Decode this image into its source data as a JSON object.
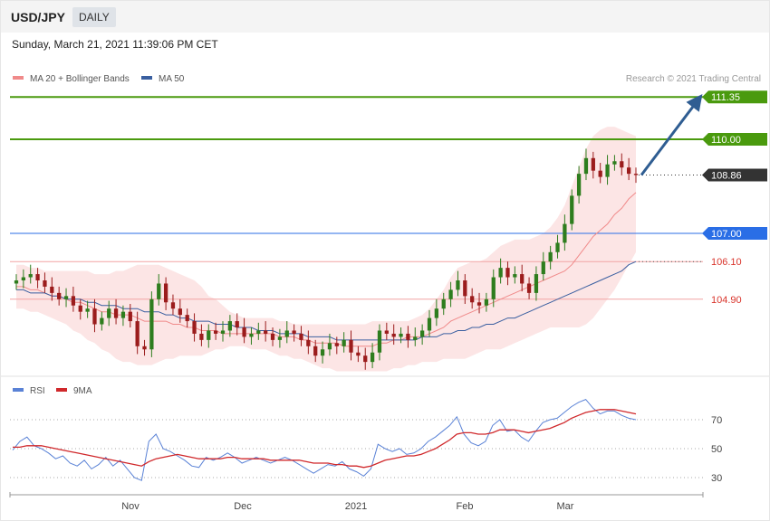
{
  "header": {
    "symbol": "USD/JPY",
    "period": "DAILY"
  },
  "date_text": "Sunday, March 21, 2021 11:39:06 PM CET",
  "copyright": "Research © 2021 Trading Central",
  "colors": {
    "green": "#4a9a0e",
    "blue": "#2a6ee6",
    "red": "#d9342b",
    "pink": "#f2a3a3",
    "band": "#fbe0e0",
    "ma20": "#f08a8a",
    "ma50": "#3a5fa0",
    "arrow": "#2f5d92",
    "rsi": "#5a82d6",
    "ma9": "#d0282b",
    "candle_up": "#2e7d1e",
    "candle_down": "#9b1c1c"
  },
  "chart_data": [
    {
      "type": "candlestick",
      "legend": [
        {
          "name": "MA 20 + Bollinger Bands",
          "color": "#f08a8a"
        },
        {
          "name": "MA 50",
          "color": "#3a5fa0"
        }
      ],
      "x_tick_labels": [
        "Nov",
        "Dec",
        "2021",
        "Feb",
        "Mar"
      ],
      "ylim": [
        102.5,
        111.9
      ],
      "closes": [
        105.5,
        105.6,
        105.7,
        105.5,
        105.3,
        105.1,
        104.9,
        105.0,
        104.7,
        104.5,
        104.6,
        104.1,
        104.3,
        104.6,
        104.3,
        104.5,
        104.2,
        103.4,
        103.3,
        104.9,
        105.4,
        104.8,
        104.6,
        104.4,
        104.2,
        103.8,
        103.6,
        103.9,
        103.8,
        103.9,
        104.2,
        104.0,
        103.7,
        103.8,
        103.9,
        103.8,
        103.6,
        103.7,
        103.9,
        103.8,
        103.6,
        103.4,
        103.1,
        103.3,
        103.5,
        103.4,
        103.6,
        103.2,
        103.1,
        102.9,
        103.2,
        103.9,
        103.8,
        103.7,
        103.8,
        103.6,
        103.7,
        103.9,
        104.3,
        104.6,
        104.9,
        105.2,
        105.5,
        105.0,
        104.8,
        104.7,
        104.9,
        105.6,
        105.9,
        105.6,
        105.7,
        105.4,
        105.1,
        105.7,
        106.1,
        106.4,
        106.7,
        107.3,
        108.2,
        108.9,
        109.4,
        109.0,
        108.8,
        109.2,
        109.3,
        109.1,
        108.9,
        108.86
      ],
      "ma20": [
        105.3,
        105.3,
        105.2,
        105.2,
        105.1,
        105.0,
        105.0,
        104.9,
        104.8,
        104.8,
        104.7,
        104.6,
        104.5,
        104.5,
        104.4,
        104.4,
        104.4,
        104.3,
        104.2,
        104.2,
        104.2,
        104.2,
        104.1,
        104.1,
        104.0,
        104.0,
        103.9,
        103.9,
        103.9,
        103.8,
        103.8,
        103.8,
        103.8,
        103.8,
        103.8,
        103.8,
        103.8,
        103.7,
        103.7,
        103.7,
        103.6,
        103.6,
        103.5,
        103.5,
        103.5,
        103.5,
        103.4,
        103.4,
        103.4,
        103.4,
        103.4,
        103.5,
        103.5,
        103.6,
        103.6,
        103.7,
        103.7,
        103.7,
        103.8,
        103.9,
        104.0,
        104.2,
        104.3,
        104.4,
        104.5,
        104.6,
        104.7,
        104.8,
        104.9,
        105.0,
        105.1,
        105.2,
        105.3,
        105.4,
        105.5,
        105.6,
        105.7,
        105.8,
        106.0,
        106.3,
        106.6,
        106.9,
        107.1,
        107.3,
        107.6,
        107.8,
        108.1,
        108.3
      ],
      "ma50": [
        105.2,
        105.2,
        105.1,
        105.1,
        105.1,
        105.0,
        105.0,
        104.9,
        104.9,
        104.9,
        104.8,
        104.8,
        104.7,
        104.7,
        104.7,
        104.6,
        104.6,
        104.6,
        104.5,
        104.5,
        104.5,
        104.4,
        104.4,
        104.3,
        104.3,
        104.2,
        104.2,
        104.2,
        104.1,
        104.1,
        104.1,
        104.0,
        104.0,
        104.0,
        103.9,
        103.9,
        103.9,
        103.8,
        103.8,
        103.8,
        103.8,
        103.7,
        103.7,
        103.7,
        103.7,
        103.6,
        103.6,
        103.6,
        103.6,
        103.6,
        103.6,
        103.6,
        103.6,
        103.6,
        103.6,
        103.6,
        103.6,
        103.7,
        103.7,
        103.7,
        103.8,
        103.8,
        103.9,
        103.9,
        104.0,
        104.0,
        104.1,
        104.1,
        104.2,
        104.3,
        104.3,
        104.4,
        104.5,
        104.6,
        104.7,
        104.8,
        104.9,
        105.0,
        105.1,
        105.2,
        105.3,
        105.4,
        105.5,
        105.6,
        105.7,
        105.8,
        106.0,
        106.1
      ],
      "bb_upper": [
        106.0,
        106.0,
        105.9,
        105.9,
        105.8,
        105.8,
        105.8,
        105.8,
        105.8,
        105.8,
        105.8,
        105.7,
        105.7,
        105.7,
        105.8,
        105.8,
        105.9,
        106.0,
        106.0,
        106.0,
        106.0,
        105.9,
        105.8,
        105.7,
        105.6,
        105.5,
        105.3,
        105.0,
        104.9,
        104.7,
        104.5,
        104.4,
        104.3,
        104.3,
        104.3,
        104.3,
        104.3,
        104.2,
        104.2,
        104.1,
        104.1,
        104.1,
        104.1,
        104.1,
        104.1,
        104.1,
        104.1,
        104.1,
        104.1,
        104.1,
        104.2,
        104.2,
        104.2,
        104.2,
        104.2,
        104.2,
        104.3,
        104.4,
        104.6,
        104.9,
        105.2,
        105.6,
        105.9,
        106.0,
        106.1,
        106.1,
        106.2,
        106.4,
        106.6,
        106.7,
        106.8,
        106.8,
        106.8,
        106.9,
        107.0,
        107.2,
        107.5,
        107.9,
        108.5,
        109.1,
        109.7,
        110.1,
        110.3,
        110.4,
        110.4,
        110.3,
        110.2,
        110.1
      ],
      "bb_lower": [
        104.6,
        104.6,
        104.5,
        104.5,
        104.4,
        104.3,
        104.2,
        104.1,
        103.9,
        103.8,
        103.6,
        103.5,
        103.3,
        103.2,
        103.0,
        102.9,
        102.9,
        102.8,
        102.8,
        102.8,
        102.9,
        103.0,
        103.0,
        103.1,
        103.1,
        103.1,
        103.1,
        103.2,
        103.3,
        103.3,
        103.4,
        103.4,
        103.4,
        103.3,
        103.3,
        103.3,
        103.2,
        103.1,
        103.1,
        103.0,
        103.0,
        102.9,
        102.8,
        102.7,
        102.7,
        102.6,
        102.6,
        102.6,
        102.6,
        102.6,
        102.6,
        102.6,
        102.6,
        102.7,
        102.7,
        102.8,
        102.8,
        102.9,
        102.9,
        102.9,
        103.0,
        103.0,
        103.0,
        103.0,
        103.1,
        103.2,
        103.3,
        103.3,
        103.3,
        103.4,
        103.5,
        103.6,
        103.7,
        103.8,
        103.9,
        104.0,
        104.0,
        104.0,
        104.0,
        104.0,
        104.1,
        104.3,
        104.6,
        104.9,
        105.2,
        105.6,
        106.0,
        106.4
      ],
      "levels": [
        {
          "value": 111.35,
          "label": "111.35",
          "kind": "green",
          "box": true
        },
        {
          "value": 110.0,
          "label": "110.00",
          "kind": "green",
          "box": true
        },
        {
          "value": 108.86,
          "label": "108.86",
          "kind": "price",
          "box": true
        },
        {
          "value": 107.0,
          "label": "107.00",
          "kind": "blue",
          "box": true
        },
        {
          "value": 106.1,
          "label": "106.10",
          "kind": "red",
          "box": false
        },
        {
          "value": 104.9,
          "label": "104.90",
          "kind": "red",
          "box": false
        }
      ],
      "arrow_target": 111.35
    },
    {
      "type": "line",
      "legend": [
        {
          "name": "RSI",
          "color": "#5a82d6"
        },
        {
          "name": "9MA",
          "color": "#d0282b"
        }
      ],
      "ylim": [
        20,
        85
      ],
      "y_ticks": [
        70,
        50,
        30
      ],
      "rsi": [
        49,
        55,
        58,
        52,
        50,
        47,
        43,
        45,
        40,
        38,
        42,
        36,
        39,
        44,
        38,
        42,
        36,
        30,
        28,
        55,
        60,
        50,
        48,
        45,
        42,
        38,
        37,
        44,
        42,
        44,
        47,
        44,
        40,
        42,
        44,
        42,
        40,
        42,
        44,
        42,
        39,
        36,
        33,
        36,
        39,
        38,
        41,
        36,
        34,
        31,
        36,
        53,
        50,
        48,
        50,
        46,
        47,
        50,
        55,
        58,
        62,
        66,
        72,
        60,
        54,
        52,
        55,
        66,
        70,
        62,
        63,
        58,
        55,
        62,
        68,
        70,
        71,
        75,
        79,
        82,
        84,
        78,
        74,
        76,
        76,
        73,
        71,
        70
      ],
      "ma9": [
        51,
        51,
        52,
        52,
        52,
        51,
        50,
        49,
        48,
        47,
        46,
        45,
        44,
        43,
        42,
        41,
        40,
        39,
        38,
        41,
        43,
        44,
        45,
        46,
        45,
        44,
        43,
        43,
        43,
        43,
        44,
        44,
        43,
        43,
        43,
        43,
        42,
        42,
        42,
        42,
        42,
        41,
        40,
        40,
        40,
        39,
        39,
        38,
        38,
        37,
        38,
        40,
        42,
        43,
        44,
        45,
        45,
        46,
        48,
        50,
        53,
        56,
        60,
        61,
        61,
        60,
        60,
        61,
        63,
        63,
        63,
        62,
        61,
        62,
        63,
        64,
        66,
        68,
        71,
        73,
        75,
        76,
        77,
        77,
        77,
        76,
        75,
        74
      ]
    }
  ]
}
